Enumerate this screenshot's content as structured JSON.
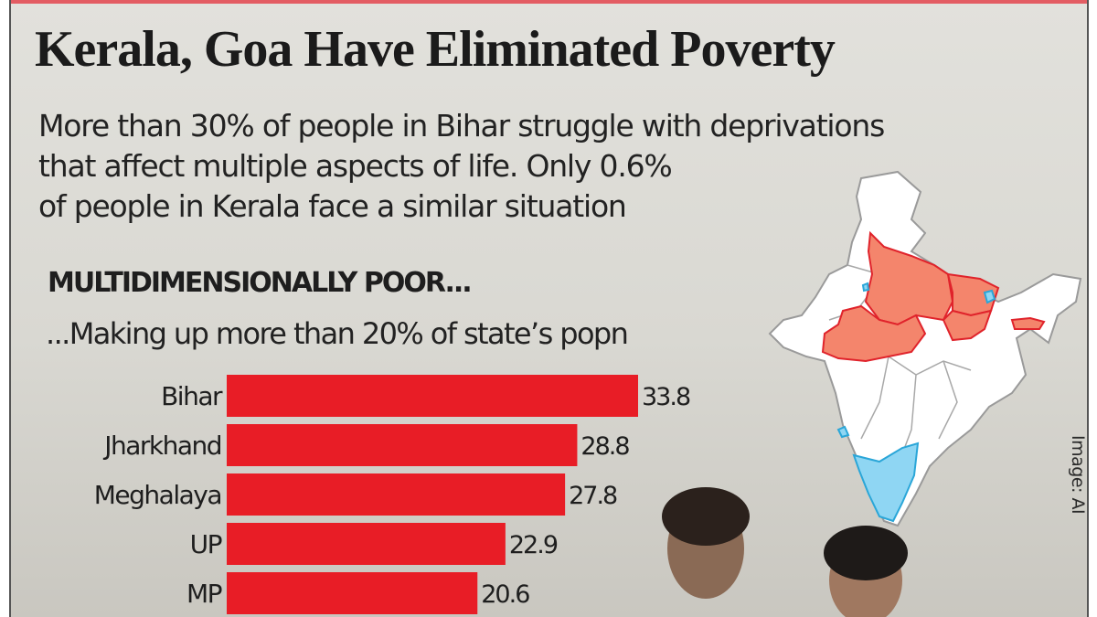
{
  "header": {
    "title": "Kerala, Goa Have Eliminated Poverty",
    "subtitle_lines": [
      "More than 30% of people in Bihar struggle with deprivations",
      "that affect multiple aspects of life. Only 0.6%",
      "of people in Kerala face a similar situation"
    ]
  },
  "section": {
    "heading": "MULTIDIMENSIONALLY POOR...",
    "subheading": "...Making up more than 20% of state’s popn"
  },
  "credit": "Image: AI",
  "colors": {
    "bar": "#e81d26",
    "map_high_poverty": "#f4856c",
    "map_high_poverty_border": "#e0232b",
    "map_low_poverty": "#8fd6f3",
    "map_low_poverty_border": "#2aa6d8",
    "map_default": "#ffffff"
  },
  "map": {
    "highlighted_high": [
      "Uttar Pradesh",
      "Madhya Pradesh",
      "Bihar",
      "Jharkhand",
      "Meghalaya"
    ],
    "highlighted_low": [
      "Kerala",
      "Tamil Nadu",
      "Goa",
      "Delhi",
      "Sikkim"
    ]
  },
  "chart_data": {
    "type": "bar",
    "orientation": "horizontal",
    "title": "MULTIDIMENSIONALLY POOR...",
    "subtitle": "...Making up more than 20% of state’s popn",
    "categories": [
      "Bihar",
      "Jharkhand",
      "Meghalaya",
      "UP",
      "MP"
    ],
    "values": [
      33.8,
      28.8,
      27.8,
      22.9,
      20.6
    ],
    "value_labels": [
      "33.8",
      "28.8",
      "27.8",
      "22.9",
      "20.6"
    ],
    "xlabel": "",
    "ylabel": "",
    "unit": "% of state population",
    "xlim": [
      0,
      33.8
    ],
    "grid": false,
    "legend": "none"
  }
}
